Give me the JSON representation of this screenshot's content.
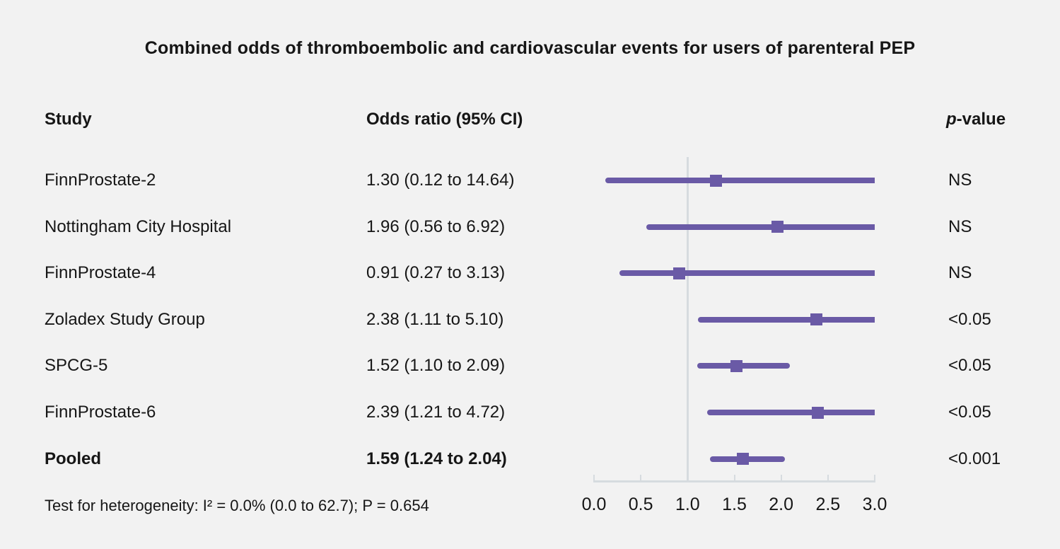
{
  "title": "Combined odds of thromboembolic and cardiovascular events for users of parenteral PEP",
  "columns": {
    "study": "Study",
    "odds_ratio": "Odds ratio (95% CI)",
    "p_value_italic": "p",
    "p_value_rest": "-value"
  },
  "colors": {
    "accent_purple": "#6a5aa6",
    "grid_gray": "#d6dbdf",
    "background": "#f2f2f2",
    "text": "#161616"
  },
  "chart_data": {
    "type": "forest",
    "title": "Combined odds of thromboembolic and cardiovascular events for users of parenteral PEP",
    "xlabel": "",
    "ylabel": "",
    "xlim": [
      0.0,
      3.0
    ],
    "x_ticks": [
      0.0,
      0.5,
      1.0,
      1.5,
      2.0,
      2.5,
      3.0
    ],
    "x_tick_labels": [
      "0.0",
      "0.5",
      "1.0",
      "1.5",
      "2.0",
      "2.5",
      "3.0"
    ],
    "reference_line_x": 1.0,
    "clip_max": 3.0,
    "legend": "none",
    "grid": false,
    "rows": [
      {
        "study": "FinnProstate-2",
        "or": 1.3,
        "ci_low": 0.12,
        "ci_high": 14.64,
        "or_label": "1.30 (0.12 to 14.64)",
        "p_label": "NS",
        "bold": false
      },
      {
        "study": "Nottingham City Hospital",
        "or": 1.96,
        "ci_low": 0.56,
        "ci_high": 6.92,
        "or_label": "1.96 (0.56 to 6.92)",
        "p_label": "NS",
        "bold": false
      },
      {
        "study": "FinnProstate-4",
        "or": 0.91,
        "ci_low": 0.27,
        "ci_high": 3.13,
        "or_label": "0.91 (0.27 to 3.13)",
        "p_label": "NS",
        "bold": false
      },
      {
        "study": "Zoladex Study Group",
        "or": 2.38,
        "ci_low": 1.11,
        "ci_high": 5.1,
        "or_label": "2.38 (1.11 to 5.10)",
        "p_label": "<0.05",
        "bold": false
      },
      {
        "study": "SPCG-5",
        "or": 1.52,
        "ci_low": 1.1,
        "ci_high": 2.09,
        "or_label": "1.52 (1.10 to 2.09)",
        "p_label": "<0.05",
        "bold": false
      },
      {
        "study": "FinnProstate-6",
        "or": 2.39,
        "ci_low": 1.21,
        "ci_high": 4.72,
        "or_label": "2.39 (1.21 to 4.72)",
        "p_label": "<0.05",
        "bold": false
      },
      {
        "study": "Pooled",
        "or": 1.59,
        "ci_low": 1.24,
        "ci_high": 2.04,
        "or_label": "1.59 (1.24 to 2.04)",
        "p_label": "<0.001",
        "bold": true
      }
    ],
    "footnote": "Test for heterogeneity: I² = 0.0% (0.0 to 62.7); P = 0.654"
  }
}
